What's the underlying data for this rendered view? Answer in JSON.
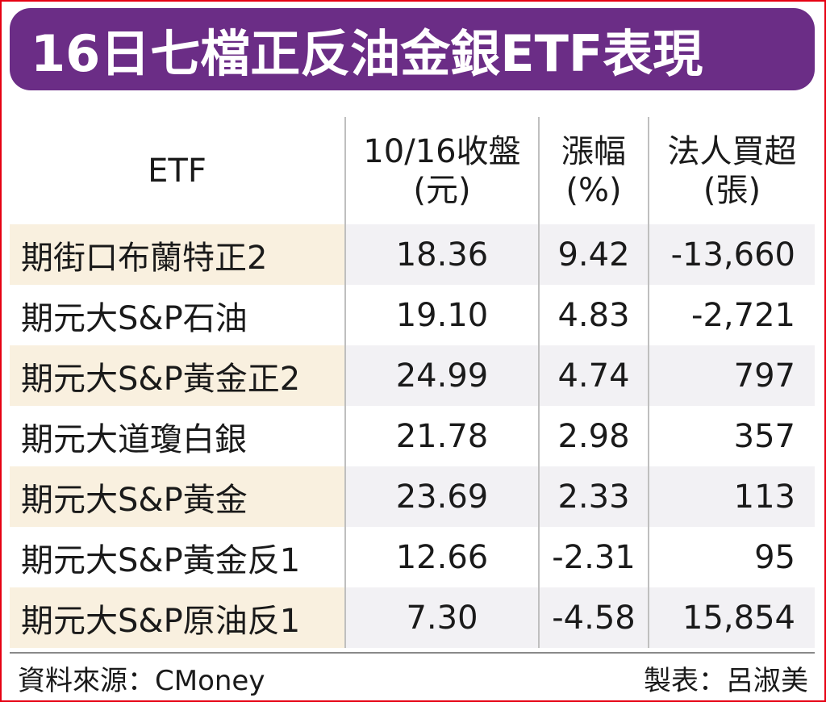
{
  "title": "16日七檔正反油金銀ETF表現",
  "headers": {
    "etf": "ETF",
    "close_line1": "10/16收盤",
    "close_line2": "(元)",
    "change_line1": "漲幅",
    "change_line2": "(%)",
    "buy_line1": "法人買超",
    "buy_line2": "(張)"
  },
  "rows": [
    {
      "name": "期街口布蘭特正2",
      "close": "18.36",
      "change": "9.42",
      "net_buy": "-13,660"
    },
    {
      "name": "期元大S&P石油",
      "close": "19.10",
      "change": "4.83",
      "net_buy": "-2,721"
    },
    {
      "name": "期元大S&P黃金正2",
      "close": "24.99",
      "change": "4.74",
      "net_buy": "797"
    },
    {
      "name": "期元大道瓊白銀",
      "close": "21.78",
      "change": "2.98",
      "net_buy": "357"
    },
    {
      "name": "期元大S&P黃金",
      "close": "23.69",
      "change": "2.33",
      "net_buy": "113"
    },
    {
      "name": "期元大S&P黃金反1",
      "close": "12.66",
      "change": "-2.31",
      "net_buy": "95"
    },
    {
      "name": "期元大S&P原油反1",
      "close": "7.30",
      "change": "-4.58",
      "net_buy": "15,854"
    }
  ],
  "footer": {
    "source": "資料來源：CMoney",
    "maker": "製表：呂淑美"
  },
  "colors": {
    "title_bg": "#6b2d86",
    "border": "#e60012",
    "shade_name": "#f9f0df",
    "shade_row": "#f2f1f4"
  }
}
